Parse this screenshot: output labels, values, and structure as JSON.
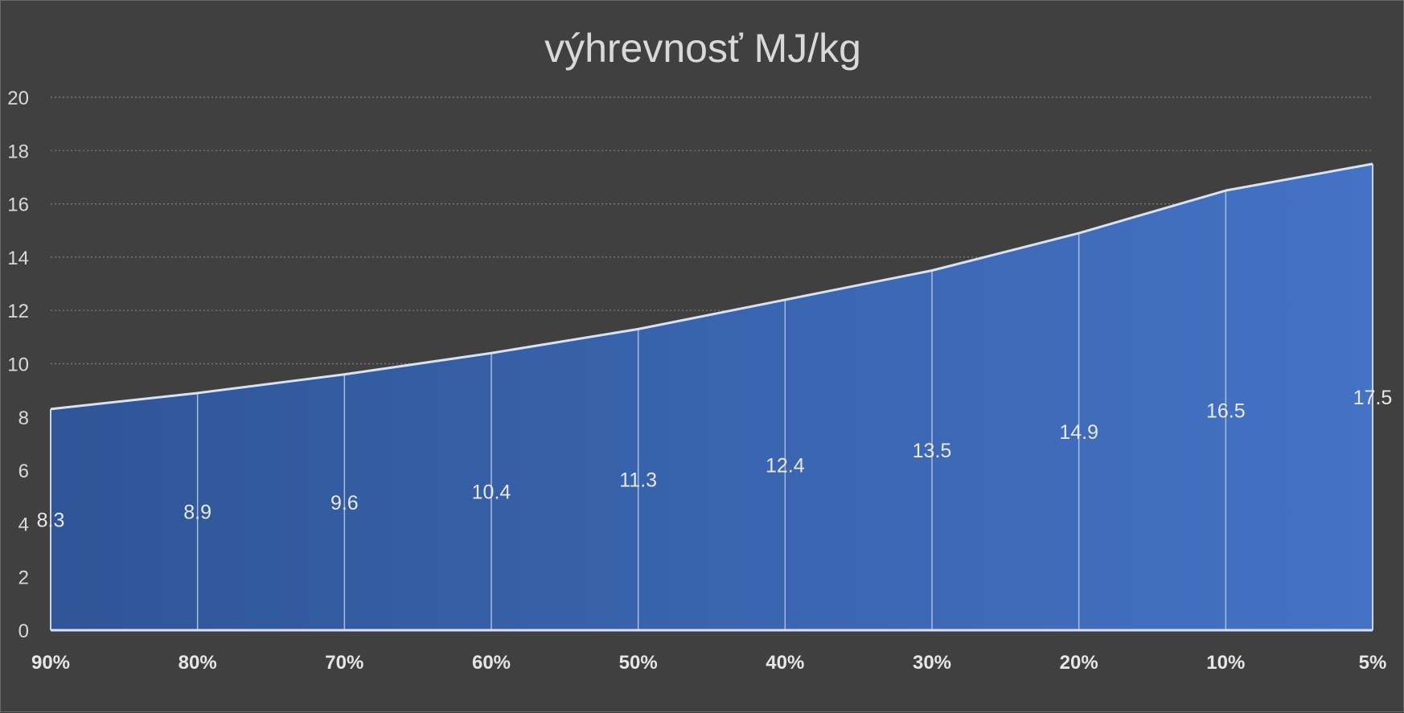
{
  "chart_data": {
    "type": "area",
    "title": "výhrevnosť MJ/kg",
    "xlabel": "",
    "ylabel": "",
    "categories": [
      "90%",
      "80%",
      "70%",
      "60%",
      "50%",
      "40%",
      "30%",
      "20%",
      "10%",
      "5%"
    ],
    "series": [
      {
        "values": [
          8.3,
          8.9,
          9.6,
          10.4,
          11.3,
          12.4,
          13.5,
          14.9,
          16.5,
          17.5
        ],
        "data_labels": [
          "8.3",
          "8.9",
          "9.6",
          "10.4",
          "11.3",
          "12.4",
          "13.5",
          "14.9",
          "16.5",
          "17.5"
        ]
      }
    ],
    "yticks": [
      "0",
      "2",
      "4",
      "6",
      "8",
      "10",
      "12",
      "14",
      "16",
      "18",
      "20"
    ],
    "ylim": [
      0,
      20
    ],
    "ytick_step": 2,
    "grid": true,
    "legend": "none",
    "colors": {
      "background": "#404040",
      "area_left": "#2f5597",
      "area_right": "#4472c4",
      "line": "#d9e2f3",
      "gridline": "#7f7f7f",
      "text": "#d9d9d9"
    }
  }
}
